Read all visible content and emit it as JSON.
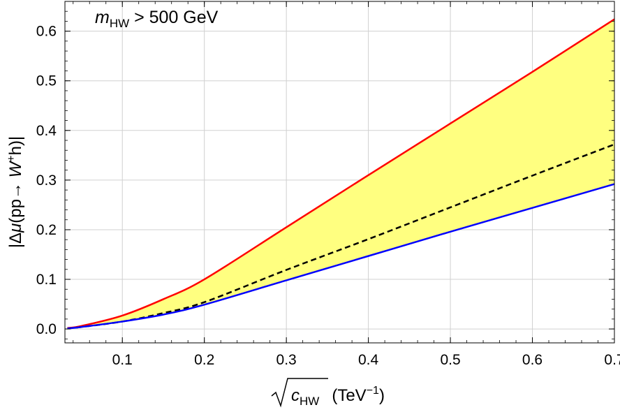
{
  "chart_data": {
    "type": "line",
    "annotation": {
      "var": "m",
      "sub": "HW",
      "rest": " > 500 GeV"
    },
    "xlabel": {
      "var": "c",
      "sub": "HW",
      "unit_open": "(TeV",
      "unit_sup": "−1",
      "unit_close": ")"
    },
    "ylabel": {
      "open": "|Δ",
      "mu": "μ",
      "mid": "(pp→ ",
      "W": "W",
      "sup": "+",
      "close": "h)|"
    },
    "xlim": [
      0.03,
      0.7
    ],
    "ylim": [
      -0.028,
      0.66
    ],
    "x_ticks": [
      0.1,
      0.2,
      0.3,
      0.4,
      0.5,
      0.6,
      0.7
    ],
    "x_tick_labels": [
      "0.1",
      "0.2",
      "0.3",
      "0.4",
      "0.5",
      "0.6",
      "0.7"
    ],
    "y_ticks": [
      0.0,
      0.1,
      0.2,
      0.3,
      0.4,
      0.5,
      0.6
    ],
    "y_tick_labels": [
      "0.0",
      "0.1",
      "0.2",
      "0.3",
      "0.4",
      "0.5",
      "0.6"
    ],
    "grid": true,
    "fill_color": "#ffff80",
    "series": [
      {
        "color": "#ff0000",
        "style": "solid",
        "x": [
          0.033,
          0.05,
          0.1,
          0.15,
          0.2,
          0.3,
          0.4,
          0.5,
          0.6,
          0.7
        ],
        "y": [
          0.002,
          0.006,
          0.027,
          0.06,
          0.1,
          0.205,
          0.31,
          0.414,
          0.518,
          0.624
        ]
      },
      {
        "color": "#000000",
        "style": "dashed",
        "x": [
          0.033,
          0.05,
          0.1,
          0.15,
          0.2,
          0.3,
          0.4,
          0.5,
          0.6,
          0.7
        ],
        "y": [
          0.001,
          0.004,
          0.015,
          0.032,
          0.054,
          0.119,
          0.181,
          0.245,
          0.309,
          0.372
        ]
      },
      {
        "color": "#0000ff",
        "style": "solid",
        "x": [
          0.033,
          0.05,
          0.1,
          0.15,
          0.2,
          0.3,
          0.4,
          0.5,
          0.6,
          0.7
        ],
        "y": [
          0.001,
          0.004,
          0.015,
          0.029,
          0.049,
          0.098,
          0.147,
          0.196,
          0.244,
          0.292
        ]
      }
    ]
  }
}
